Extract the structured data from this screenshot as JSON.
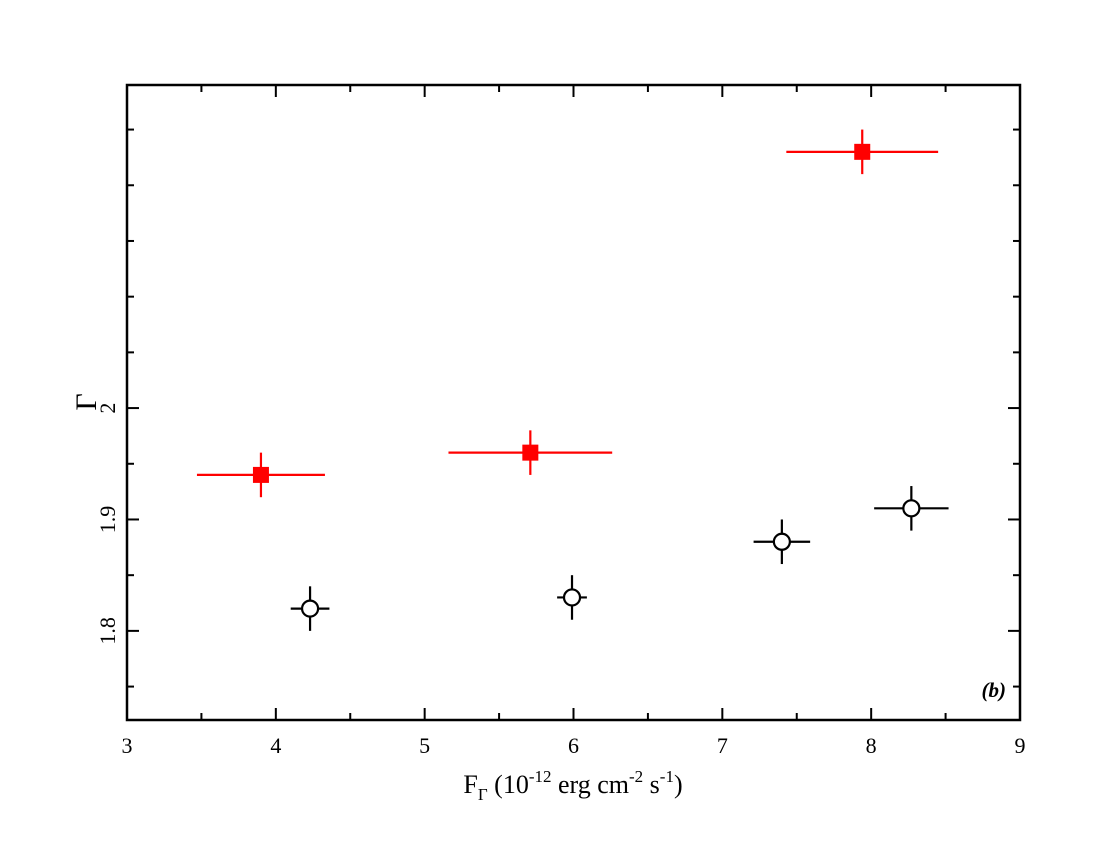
{
  "chart_data": {
    "type": "scatter",
    "xlabel": {
      "main": "F",
      "sub": "Γ",
      "open": " (10",
      "exp1": "-12",
      "mid1": " erg cm",
      "exp2": "-2",
      "mid2": " s",
      "exp3": "-1",
      "close": ")"
    },
    "ylabel": "Γ",
    "xlim": [
      3,
      9
    ],
    "ylim": [
      1.72,
      2.29
    ],
    "x_ticks": [
      "3",
      "4",
      "5",
      "6",
      "7",
      "8",
      "9"
    ],
    "y_ticks": [
      "1.8",
      "1.9",
      "2"
    ],
    "grid": false,
    "annotation": "(b)",
    "series": [
      {
        "marker": "filled-square",
        "color": "#ff0000",
        "points": [
          {
            "x": 3.9,
            "y": 1.94,
            "xerr": 0.43,
            "yerr": 0.02
          },
          {
            "x": 5.71,
            "y": 1.96,
            "xerr": 0.55,
            "yerr": 0.02
          },
          {
            "x": 7.94,
            "y": 2.23,
            "xerr": 0.51,
            "yerr": 0.02
          }
        ]
      },
      {
        "marker": "open-circle",
        "color": "#000000",
        "points": [
          {
            "x": 4.23,
            "y": 1.82,
            "xerr": 0.13,
            "yerr": 0.02
          },
          {
            "x": 5.99,
            "y": 1.83,
            "xerr": 0.1,
            "yerr": 0.02
          },
          {
            "x": 7.4,
            "y": 1.88,
            "xerr": 0.19,
            "yerr": 0.02
          },
          {
            "x": 8.27,
            "y": 1.91,
            "xerr": 0.25,
            "yerr": 0.02
          }
        ]
      }
    ]
  }
}
